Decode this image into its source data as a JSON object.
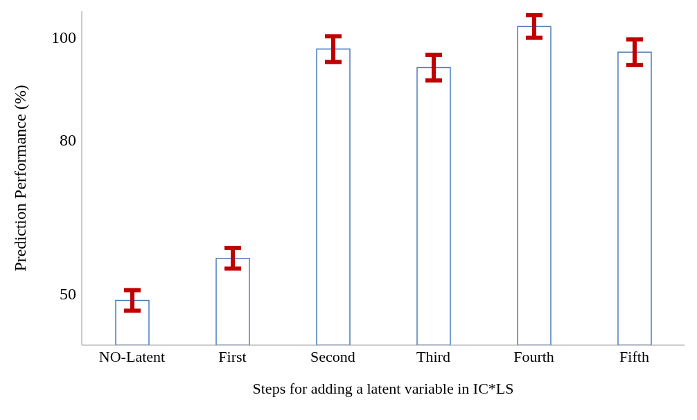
{
  "chart_data": {
    "type": "bar",
    "xlabel": "Steps for adding a latent variable in IC*LS",
    "ylabel": "Prediction Performance (%)",
    "categories": [
      "NO-Latent",
      "First",
      "Second",
      "Third",
      "Fourth",
      "Fifth"
    ],
    "values": [
      48.7,
      56.9,
      97.6,
      94,
      102,
      97
    ],
    "errors": [
      2,
      2,
      2.5,
      2.5,
      2.2,
      2.5
    ],
    "color": "#4a7ebf",
    "ylim": [
      40,
      105
    ],
    "yticks": [
      50,
      80,
      100
    ],
    "grid": false
  }
}
